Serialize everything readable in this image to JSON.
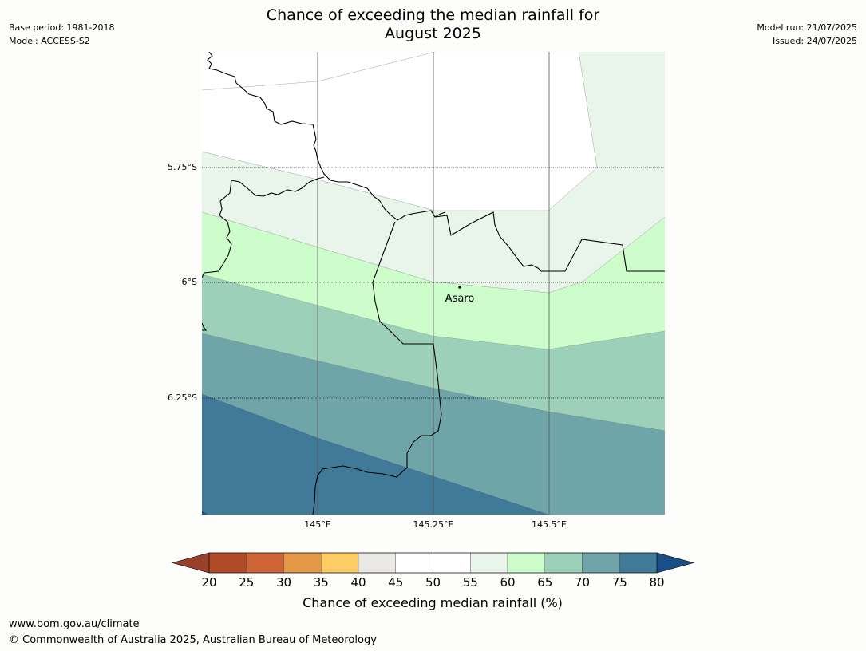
{
  "title_line1": "Chance of exceeding the median rainfall for",
  "title_line2": "August 2025",
  "meta_left": {
    "base_period": "Base period: 1981-2018",
    "model": "Model: ACCESS-S2"
  },
  "meta_right": {
    "model_run": "Model run: 21/07/2025",
    "issued": "Issued: 24/07/2025"
  },
  "map": {
    "lat_labels": [
      "5.75°S",
      "6°S",
      "6.25°S"
    ],
    "lon_labels": [
      "145°E",
      "145.25°E",
      "145.5°E"
    ],
    "place": {
      "name": "Asaro"
    }
  },
  "colorbar": {
    "ticks": [
      "20",
      "25",
      "30",
      "35",
      "40",
      "45",
      "50",
      "55",
      "60",
      "65",
      "70",
      "75",
      "80"
    ],
    "colors": [
      "#b14a26",
      "#cf6434",
      "#e39747",
      "#fdcc64",
      "#ebe9e6",
      "#ffffff",
      "#ffffff",
      "#e9f5eb",
      "#ccfdcb",
      "#9dd0b9",
      "#6fa4a8",
      "#417998"
    ],
    "under_color": "#993f2a",
    "over_color": "#1a4e87",
    "label": "Chance of exceeding median rainfall (%)"
  },
  "footer": {
    "url": "www.bom.gov.au/climate",
    "copyright": "© Commonwealth of Australia 2025, Australian Bureau of Meteorology"
  }
}
